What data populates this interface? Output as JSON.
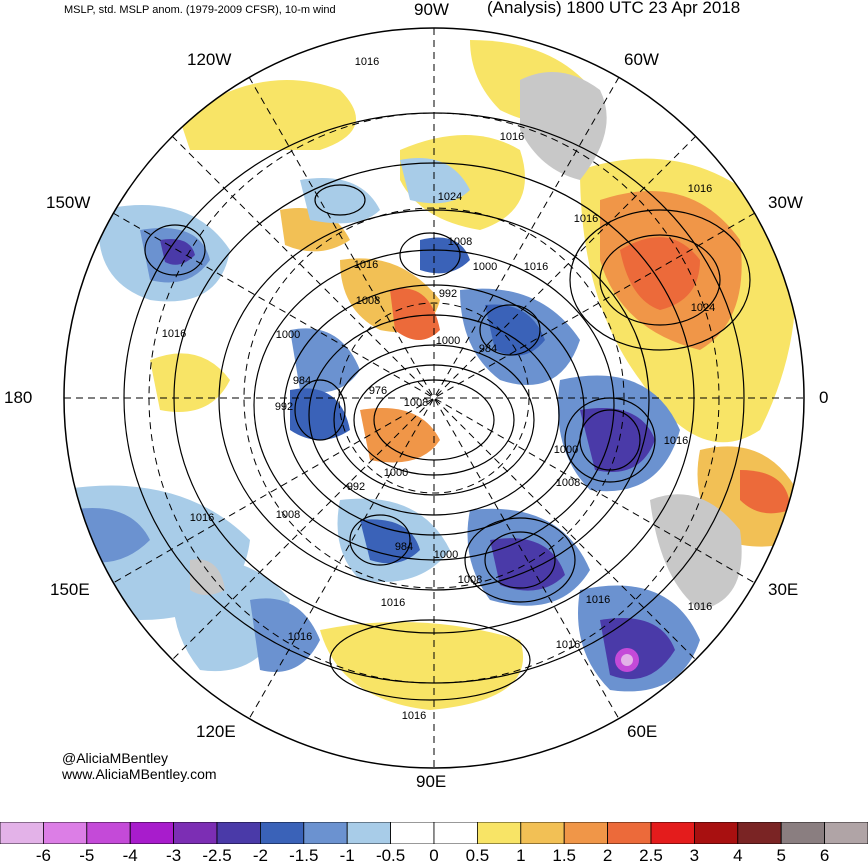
{
  "header": {
    "left": "MSLP, std. MSLP anom. (1979-2009 CFSR), 10-m wind",
    "right": "(Analysis) 1800 UTC 23 Apr 2018"
  },
  "lon_labels": {
    "top": "90W",
    "nw": "120W",
    "ne": "60W",
    "wnw": "150W",
    "ene": "30W",
    "left": "180",
    "right": "0",
    "wsw": "150E",
    "ese": "30E",
    "sw": "120E",
    "se": "60E",
    "bottom": "90E"
  },
  "credits": {
    "handle": "@AliciaMBentley",
    "site": "www.AliciaMBentley.com"
  },
  "isobar_labels": [
    "1016",
    "1024",
    "1008",
    "1000",
    "992",
    "984",
    "976",
    "1016",
    "1000",
    "1016",
    "1008",
    "1016",
    "1024",
    "1016",
    "1016",
    "1000",
    "1008",
    "1016",
    "984",
    "1000",
    "1008",
    "1016",
    "1016",
    "1016",
    "1016",
    "1016",
    "992",
    "1000",
    "1008",
    "1016",
    "1000",
    "984",
    "992",
    "1016",
    "1008",
    "1016"
  ],
  "colorbar": {
    "colors": [
      "#e3b2e8",
      "#dc7ee6",
      "#c44ad8",
      "#a81ccc",
      "#7c2eb4",
      "#4a3aa8",
      "#3a62b8",
      "#6b92d0",
      "#a8cce8",
      "#ffffff",
      "#ffffff",
      "#f8e466",
      "#f2c055",
      "#f09648",
      "#ec6a3a",
      "#e41c1c",
      "#a81010",
      "#7a2424",
      "#8a7e80",
      "#b0a4a6"
    ],
    "ticks": [
      "-6",
      "-5",
      "-4",
      "-3",
      "-2.5",
      "-2",
      "-1.5",
      "-1",
      "-0.5",
      "0",
      "0.5",
      "1",
      "1.5",
      "2",
      "2.5",
      "3",
      "4",
      "5",
      "6"
    ]
  }
}
